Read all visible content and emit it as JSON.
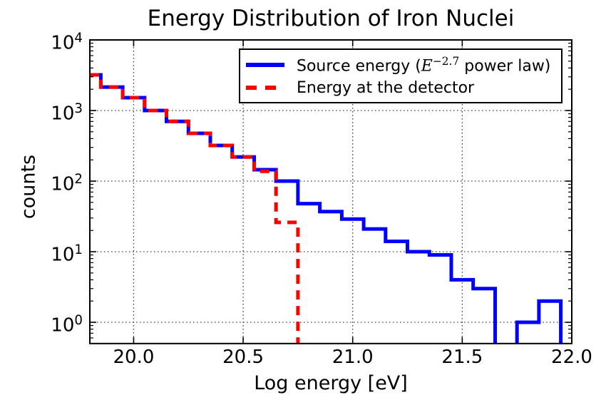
{
  "chart_data": {
    "type": "line",
    "variant": "step-histogram",
    "title": "Energy Distribution of Iron Nuclei",
    "xlabel": "Log energy [eV]",
    "ylabel": "counts",
    "xlim": [
      19.8,
      22.0
    ],
    "ylim_log": [
      0.5,
      10000
    ],
    "y_scale": "log",
    "grid": "dotted",
    "legend_position": "upper center",
    "xticks": [
      {
        "value": 20.0,
        "label": "20.0"
      },
      {
        "value": 20.5,
        "label": "20.5"
      },
      {
        "value": 21.0,
        "label": "21.0"
      },
      {
        "value": 21.5,
        "label": "21.5"
      },
      {
        "value": 22.0,
        "label": "22.0"
      }
    ],
    "yticks": [
      {
        "exp": 4,
        "base": "10",
        "sup": "4"
      },
      {
        "exp": 3,
        "base": "10",
        "sup": "3"
      },
      {
        "exp": 2,
        "base": "10",
        "sup": "2"
      },
      {
        "exp": 1,
        "base": "10",
        "sup": "1"
      },
      {
        "exp": 0,
        "base": "10",
        "sup": "0"
      }
    ],
    "bin_edges": [
      19.75,
      19.85,
      19.95,
      20.05,
      20.15,
      20.25,
      20.35,
      20.45,
      20.55,
      20.65,
      20.75,
      20.85,
      20.95,
      21.05,
      21.15,
      21.25,
      21.35,
      21.45,
      21.55,
      21.65,
      21.75,
      21.85,
      21.95,
      22.05
    ],
    "series": [
      {
        "name": "Source energy (E^-2.7 power law)",
        "color": "#0000ff",
        "style": "solid",
        "counts": [
          3200,
          2150,
          1520,
          1000,
          700,
          475,
          320,
          220,
          145,
          100,
          48,
          37,
          29,
          21,
          14,
          10,
          9,
          4,
          3,
          0,
          1,
          2,
          0
        ]
      },
      {
        "name": "Energy at the detector",
        "color": "#ff0000",
        "style": "dashed",
        "counts": [
          3200,
          2150,
          1520,
          1000,
          700,
          475,
          320,
          220,
          138,
          26,
          0,
          0,
          0,
          0,
          0,
          0,
          0,
          0,
          0,
          0,
          0,
          0,
          0
        ]
      }
    ],
    "legend": [
      {
        "prefix": "Source energy (",
        "math_var": "E",
        "math_sup": "−2.7",
        "suffix": " power law)"
      },
      {
        "label": "Energy at the detector"
      }
    ],
    "colors": {
      "axis": "#000000",
      "grid": "#444444",
      "background": "#ffffff",
      "text": "#000000"
    }
  }
}
